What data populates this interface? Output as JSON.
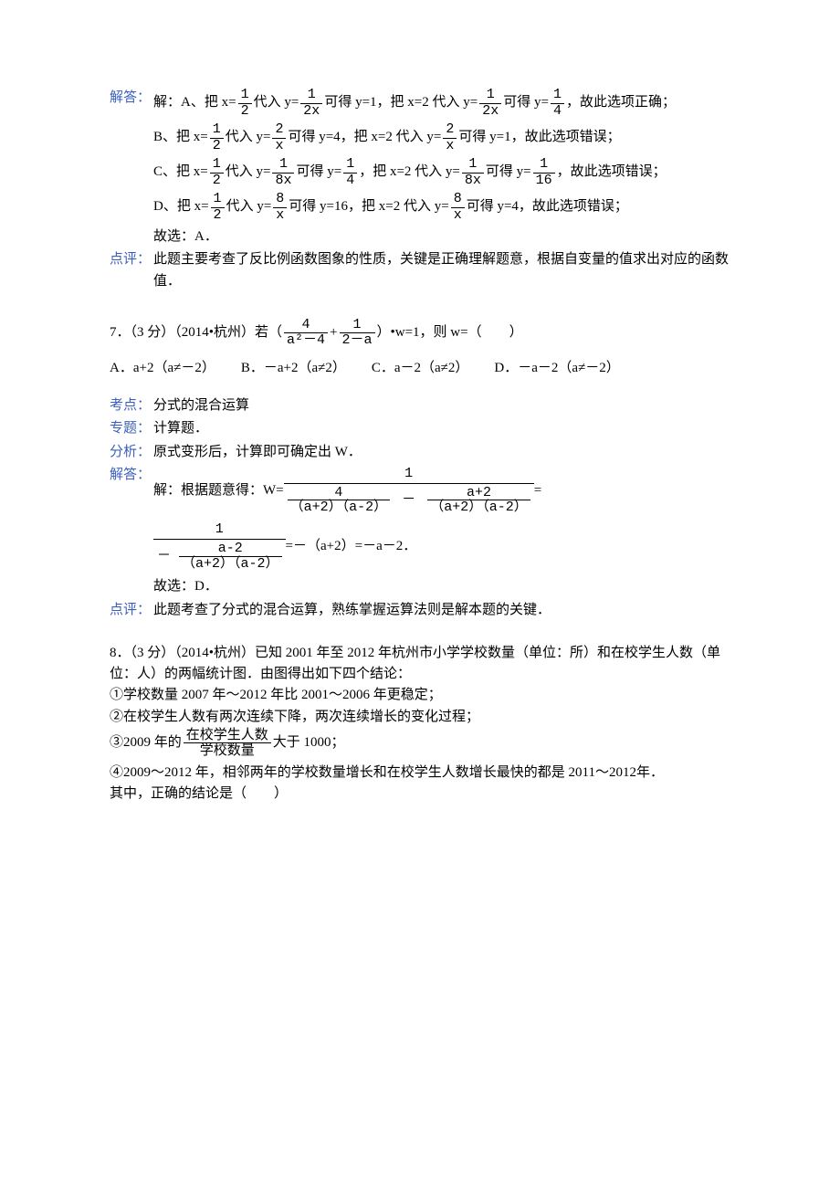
{
  "q6": {
    "label_answer": "解答：",
    "prefix": "解：",
    "lineA": {
      "opt": "A、把 x=",
      "f1_num": "1",
      "f1_den": "2",
      "mid1": "代入 y=",
      "f2_num": "1",
      "f2_den": "2x",
      "mid2": "可得 y=1，把 x=2 代入 y=",
      "f3_num": "1",
      "f3_den": "2x",
      "mid3": "可得 y=",
      "f4_num": "1",
      "f4_den": "4",
      "tail": "，故此选项正确；"
    },
    "lineB": {
      "opt": "B、把 x=",
      "f1_num": "1",
      "f1_den": "2",
      "mid1": "代入 y=",
      "f2_num": "2",
      "f2_den": "x",
      "mid2": "可得 y=4，把 x=2 代入 y=",
      "f3_num": "2",
      "f3_den": "x",
      "tail": "可得 y=1，故此选项错误；"
    },
    "lineC": {
      "opt": "C、把 x=",
      "f1_num": "1",
      "f1_den": "2",
      "mid1": "代入 y=",
      "f2_num": "1",
      "f2_den": "8x",
      "mid2": "可得 y=",
      "f2b_num": "1",
      "f2b_den": "4",
      "mid3": "，把 x=2 代入 y=",
      "f3_num": "1",
      "f3_den": "8x",
      "mid4": "可得 y=",
      "f4_num": "1",
      "f4_den": "16",
      "tail": "，故此选项错误；"
    },
    "lineD": {
      "opt": "D、把 x=",
      "f1_num": "1",
      "f1_den": "2",
      "mid1": "代入 y=",
      "f2_num": "8",
      "f2_den": "x",
      "mid2": "可得 y=16，把 x=2 代入 y=",
      "f3_num": "8",
      "f3_den": "x",
      "tail": "可得 y=4，故此选项错误；"
    },
    "conclusion": "故选：A．",
    "label_comment": "点评：",
    "comment": "此题主要考查了反比例函数图象的性质，关键是正确理解题意，根据自变量的值求出对应的函数值．"
  },
  "q7": {
    "stem_pre": "7．（3 分）（2014•杭州）若（",
    "f1_num": "4",
    "f1_den": "a²－4",
    "plus": "+",
    "f2_num": "1",
    "f2_den": "2－a",
    "stem_post": "）•w=1，则 w=（　　）",
    "opts": {
      "A": "A．a+2（a≠－2）",
      "B": "B．－a+2（a≠2）",
      "C": "C．a－2（a≠2）",
      "D": "D．－a－2（a≠－2）"
    },
    "label_kd": "考点：",
    "kd": "分式的混合运算",
    "label_topic": "专题：",
    "topic": "计算题．",
    "label_analysis": "分析：",
    "analysis": "原式变形后，计算即可确定出 W．",
    "label_answer": "解答：",
    "ans_prefix": "解：根据题意得：W=",
    "nf1": {
      "num": "1",
      "den_left_num": "4",
      "den_left_den": "（a+2）（a-2）",
      "minus": "－",
      "den_right_num": "a+2",
      "den_right_den": "（a+2）（a-2）"
    },
    "eq_sep": "=",
    "nf2": {
      "num": "1",
      "den_prefix": "－",
      "den_inner_num": "a-2",
      "den_inner_den": "（a+2）（a-2）"
    },
    "ans_tail": "=－（a+2）=－a－2．",
    "conclusion": "故选：D．",
    "label_comment": "点评：",
    "comment": "此题考查了分式的混合运算，熟练掌握运算法则是解本题的关键．"
  },
  "q8": {
    "stem1": "8．（3 分）（2014•杭州）已知 2001 年至 2012 年杭州市小学学校数量（单位：所）和在校学生人数（单位：人）的两幅统计图．由图得出如下四个结论：",
    "item1": "①学校数量 2007 年～2012 年比 2001～2006 年更稳定；",
    "item2": "②在校学生人数有两次连续下降，两次连续增长的变化过程；",
    "item3_pre": "③2009 年的",
    "item3_frac_num": "在校学生人数",
    "item3_frac_den": "学校数量",
    "item3_post": "大于 1000；",
    "item4": "④2009～2012 年，相邻两年的学校数量增长和在校学生人数增长最快的都是 2011～2012年．",
    "tail": "其中，正确的结论是（　　）"
  }
}
